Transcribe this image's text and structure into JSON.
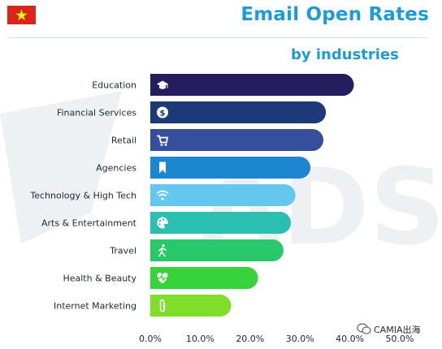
{
  "header": {
    "title": "Email Open Rates",
    "subtitle": "by industries"
  },
  "flag": {
    "name": "vietnam-flag",
    "background": "#da251d",
    "star": "#ffff00"
  },
  "watermark": {
    "text": "ADSO",
    "credit": "CAMIA出海"
  },
  "colors": {
    "title": "#1e9bd7",
    "bars": [
      "#241d5e",
      "#1d3a78",
      "#364f9c",
      "#1d86d0",
      "#63c7ee",
      "#2abfb0",
      "#28c86b",
      "#38d23c",
      "#7ede2a"
    ]
  },
  "chart_data": {
    "type": "bar",
    "orientation": "horizontal",
    "categories": [
      "Education",
      "Financial Services",
      "Retail",
      "Agencies",
      "Technology & High Tech",
      "Arts & Entertainment",
      "Travel",
      "Health & Beauty",
      "Internet Marketing"
    ],
    "values": [
      40.8,
      35.2,
      34.7,
      32.1,
      29.1,
      28.2,
      26.7,
      21.6,
      16.2
    ],
    "icons": [
      "graduation-cap-icon",
      "dollar-icon",
      "shopping-cart-icon",
      "bookmark-icon",
      "wifi-icon",
      "palette-icon",
      "walking-icon",
      "heart-pulse-icon",
      "paperclip-icon"
    ],
    "xticks": [
      "0.0%",
      "10.0%",
      "20.0%",
      "30.0%",
      "40.0%",
      "50.0%"
    ],
    "xlim": [
      0,
      50
    ],
    "title": "Email Open Rates",
    "subtitle": "by industries",
    "xlabel": "",
    "ylabel": "",
    "grid": false,
    "legend": "none"
  }
}
